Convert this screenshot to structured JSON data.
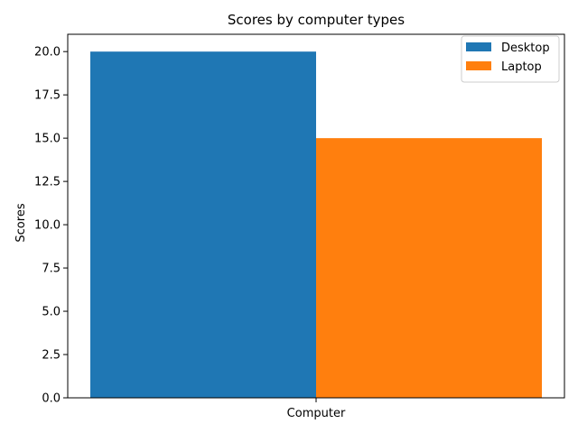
{
  "chart_data": {
    "type": "bar",
    "title": "Scores by computer types",
    "xlabel": "",
    "ylabel": "Scores",
    "categories": [
      "Computer"
    ],
    "series": [
      {
        "name": "Desktop",
        "values": [
          20
        ],
        "color": "#1f77b4"
      },
      {
        "name": "Laptop",
        "values": [
          15
        ],
        "color": "#ff7f0e"
      }
    ],
    "ylim": [
      0,
      21
    ],
    "yticks": [
      0,
      2.5,
      5,
      7.5,
      10,
      12.5,
      15,
      17.5,
      20
    ],
    "ytick_labels": [
      "0.0",
      "2.5",
      "5.0",
      "7.5",
      "10.0",
      "12.5",
      "15.0",
      "17.5",
      "20.0"
    ],
    "grid": false,
    "legend": "top-right"
  }
}
